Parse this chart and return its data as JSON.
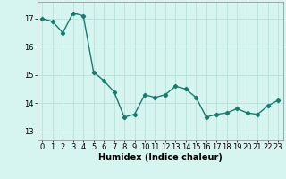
{
  "x": [
    0,
    1,
    2,
    3,
    4,
    5,
    6,
    7,
    8,
    9,
    10,
    11,
    12,
    13,
    14,
    15,
    16,
    17,
    18,
    19,
    20,
    21,
    22,
    23
  ],
  "y": [
    17.0,
    16.9,
    16.5,
    17.2,
    17.1,
    15.1,
    14.8,
    14.4,
    13.5,
    13.6,
    14.3,
    14.2,
    14.3,
    14.6,
    14.5,
    14.2,
    13.5,
    13.6,
    13.65,
    13.8,
    13.65,
    13.6,
    13.9,
    14.1
  ],
  "line_color": "#1a7a6e",
  "marker": "D",
  "marker_size": 2.2,
  "bg_color": "#d7f5f0",
  "grid_color": "#b8e0da",
  "xlabel": "Humidex (Indice chaleur)",
  "yticks": [
    13,
    14,
    15,
    16,
    17
  ],
  "xticks": [
    0,
    1,
    2,
    3,
    4,
    5,
    6,
    7,
    8,
    9,
    10,
    11,
    12,
    13,
    14,
    15,
    16,
    17,
    18,
    19,
    20,
    21,
    22,
    23
  ],
  "ylim": [
    12.7,
    17.6
  ],
  "xlim": [
    -0.5,
    23.5
  ],
  "xlabel_fontsize": 7.0,
  "tick_fontsize": 6.0,
  "linewidth": 1.0
}
